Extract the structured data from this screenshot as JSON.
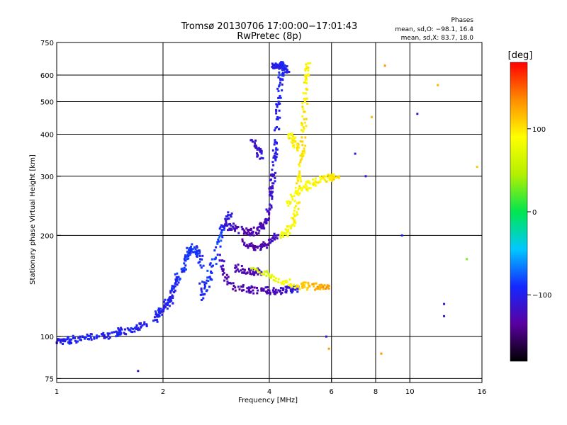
{
  "chart_data": {
    "type": "scatter",
    "title": "Tromsø 20130706 17:00:00−17:01:43",
    "subtitle": "RwPretec (8p)",
    "xlabel": "Frequency [MHz]",
    "ylabel": "Stationary phase Virtual Height [km]",
    "xscale": "log",
    "yscale": "log",
    "xlim": [
      1,
      16
    ],
    "ylim": [
      73,
      750
    ],
    "x_ticks": [
      "1",
      "2",
      "4",
      "6",
      "8",
      "10",
      "16"
    ],
    "x_tick_values": [
      1,
      2,
      4,
      6,
      8,
      10,
      16
    ],
    "y_ticks": [
      "75",
      "100",
      "200",
      "300",
      "400",
      "500",
      "600",
      "750"
    ],
    "y_tick_values": [
      75,
      100,
      200,
      300,
      400,
      500,
      600,
      750
    ],
    "grid": true,
    "phase_stats": {
      "title": "Phases",
      "line_o": "mean, sd,O: −98.1, 16.4",
      "line_x": "mean, sd,X:  83.7, 18.0"
    },
    "colorbar": {
      "label": "[deg]",
      "range": [
        -180,
        180
      ],
      "tick_labels": [
        "100",
        "0",
        "−100"
      ],
      "tick_values": [
        100,
        0,
        -100
      ],
      "colors": [
        "#000000",
        "#5a00a0",
        "#1428ff",
        "#00c8ff",
        "#00e650",
        "#b4f000",
        "#ffff00",
        "#ff8c00",
        "#ff0000"
      ]
    },
    "series": [
      {
        "points": [
          [
            1.0,
            96,
            -105
          ],
          [
            1.05,
            97,
            -100
          ],
          [
            1.1,
            98,
            -95
          ],
          [
            1.2,
            99,
            -100
          ],
          [
            1.3,
            100,
            -95
          ],
          [
            1.4,
            101,
            -100
          ],
          [
            1.5,
            103,
            -95
          ],
          [
            1.6,
            105,
            -100
          ],
          [
            1.7,
            106,
            -98
          ],
          [
            1.8,
            108,
            -100
          ]
        ]
      },
      {
        "points": [
          [
            1.9,
            112,
            -100
          ],
          [
            1.95,
            118,
            -98
          ],
          [
            2.0,
            120,
            -100
          ],
          [
            2.05,
            125,
            -95
          ],
          [
            2.1,
            128,
            -98
          ],
          [
            2.15,
            140,
            -95
          ],
          [
            2.2,
            150,
            -92
          ],
          [
            2.3,
            160,
            -90
          ],
          [
            2.35,
            175,
            -90
          ],
          [
            2.4,
            185,
            -88
          ],
          [
            2.5,
            180,
            -90
          ],
          [
            2.55,
            170,
            -92
          ],
          [
            2.6,
            130,
            -95
          ],
          [
            2.7,
            150,
            -88
          ],
          [
            2.8,
            170,
            -85
          ],
          [
            2.9,
            200,
            -82
          ],
          [
            3.0,
            215,
            -100
          ],
          [
            3.1,
            230,
            -110
          ]
        ]
      },
      {
        "points": [
          [
            2.9,
            175,
            -120
          ],
          [
            3.0,
            150,
            -125
          ],
          [
            3.2,
            140,
            -128
          ],
          [
            3.5,
            138,
            -130
          ],
          [
            3.8,
            137,
            -128
          ],
          [
            4.0,
            137,
            -125
          ],
          [
            4.3,
            137,
            -120
          ],
          [
            4.6,
            138,
            -110
          ],
          [
            4.8,
            139,
            -100
          ]
        ]
      },
      {
        "points": [
          [
            3.2,
            160,
            -125
          ],
          [
            3.4,
            158,
            -128
          ],
          [
            3.6,
            156,
            -125
          ],
          [
            3.8,
            155,
            -120
          ]
        ]
      },
      {
        "points": [
          [
            3.0,
            215,
            -120
          ],
          [
            3.2,
            210,
            -125
          ],
          [
            3.4,
            205,
            -130
          ],
          [
            3.6,
            205,
            -128
          ],
          [
            3.8,
            210,
            -125
          ],
          [
            3.9,
            220,
            -122
          ],
          [
            4.0,
            240,
            -118
          ],
          [
            4.05,
            270,
            -112
          ],
          [
            4.1,
            300,
            -108
          ],
          [
            4.15,
            350,
            -105
          ],
          [
            4.2,
            420,
            -100
          ],
          [
            4.25,
            500,
            -98
          ],
          [
            4.3,
            580,
            -96
          ],
          [
            4.35,
            640,
            -95
          ]
        ]
      },
      {
        "points": [
          [
            3.4,
            190,
            -125
          ],
          [
            3.6,
            185,
            -130
          ],
          [
            3.8,
            185,
            -128
          ],
          [
            4.0,
            190,
            -125
          ],
          [
            4.2,
            200,
            -120
          ]
        ]
      },
      {
        "points": [
          [
            3.6,
            380,
            -115
          ],
          [
            3.7,
            360,
            -110
          ],
          [
            3.8,
            340,
            -108
          ]
        ]
      },
      {
        "points": [
          [
            4.1,
            640,
            -105
          ],
          [
            4.2,
            645,
            -100
          ],
          [
            4.3,
            640,
            -100
          ],
          [
            4.4,
            630,
            -98
          ],
          [
            4.5,
            620,
            -96
          ]
        ]
      },
      {
        "points": [
          [
            4.3,
            200,
            80
          ],
          [
            4.5,
            205,
            85
          ],
          [
            4.7,
            220,
            90
          ],
          [
            4.8,
            250,
            92
          ],
          [
            4.9,
            300,
            95
          ],
          [
            4.95,
            350,
            100
          ],
          [
            5.0,
            420,
            100
          ],
          [
            5.05,
            500,
            98
          ],
          [
            5.1,
            600,
            95
          ],
          [
            5.15,
            650,
            92
          ]
        ]
      },
      {
        "points": [
          [
            4.6,
            400,
            95
          ],
          [
            4.7,
            380,
            95
          ],
          [
            4.8,
            360,
            98
          ]
        ]
      },
      {
        "points": [
          [
            4.5,
            250,
            85
          ],
          [
            4.8,
            270,
            88
          ],
          [
            5.1,
            280,
            90
          ],
          [
            5.4,
            290,
            92
          ],
          [
            5.7,
            295,
            95
          ],
          [
            6.0,
            298,
            100
          ],
          [
            6.3,
            300,
            105
          ]
        ]
      },
      {
        "points": [
          [
            3.6,
            160,
            60
          ],
          [
            4.0,
            152,
            70
          ],
          [
            4.4,
            146,
            85
          ],
          [
            4.8,
            142,
            100
          ],
          [
            5.2,
            141,
            115
          ],
          [
            5.6,
            140,
            125
          ],
          [
            5.9,
            139,
            130
          ]
        ]
      },
      {
        "points": [
          [
            8.5,
            640,
            130
          ],
          [
            10.5,
            460,
            -110
          ],
          [
            12.0,
            560,
            120
          ],
          [
            12.5,
            125,
            -110
          ],
          [
            12.5,
            115,
            -115
          ],
          [
            14.5,
            170,
            30
          ],
          [
            15.5,
            320,
            110
          ],
          [
            5.8,
            100,
            -110
          ],
          [
            5.9,
            92,
            130
          ],
          [
            8.3,
            89,
            130
          ],
          [
            7.8,
            450,
            120
          ],
          [
            7.0,
            350,
            -100
          ],
          [
            7.5,
            300,
            -110
          ],
          [
            9.5,
            200,
            -100
          ],
          [
            1.7,
            79,
            -110
          ]
        ]
      }
    ]
  }
}
